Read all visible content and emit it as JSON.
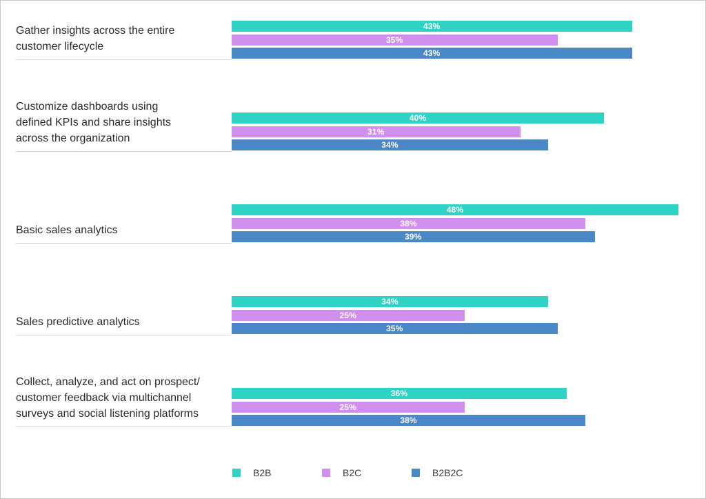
{
  "chart_data": {
    "type": "bar",
    "orientation": "horizontal",
    "title": "",
    "xlabel": "",
    "ylabel": "",
    "xlim": [
      0,
      48
    ],
    "legend_position": "bottom",
    "grid": false,
    "categories": [
      "Gather insights across the entire\ncustomer lifecycle",
      "Customize dashboards using\ndefined KPIs and share insights\nacross the organization",
      "Basic sales analytics",
      "Sales predictive analytics",
      "Collect, analyze, and act on prospect/\ncustomer feedback via multichannel\nsurveys and social listening platforms"
    ],
    "series": [
      {
        "name": "B2B",
        "color": "#2ed3c6",
        "values": [
          43,
          40,
          48,
          34,
          36
        ],
        "labels": [
          "43%",
          "40%",
          "48%",
          "34%",
          "36%"
        ]
      },
      {
        "name": "B2C",
        "color": "#d08fef",
        "values": [
          35,
          31,
          38,
          25,
          25
        ],
        "labels": [
          "35%",
          "31%",
          "38%",
          "25%",
          "25%"
        ]
      },
      {
        "name": "B2B2C",
        "color": "#4a87c7",
        "values": [
          43,
          34,
          39,
          35,
          38
        ],
        "labels": [
          "43%",
          "34%",
          "39%",
          "35%",
          "38%"
        ]
      }
    ]
  }
}
